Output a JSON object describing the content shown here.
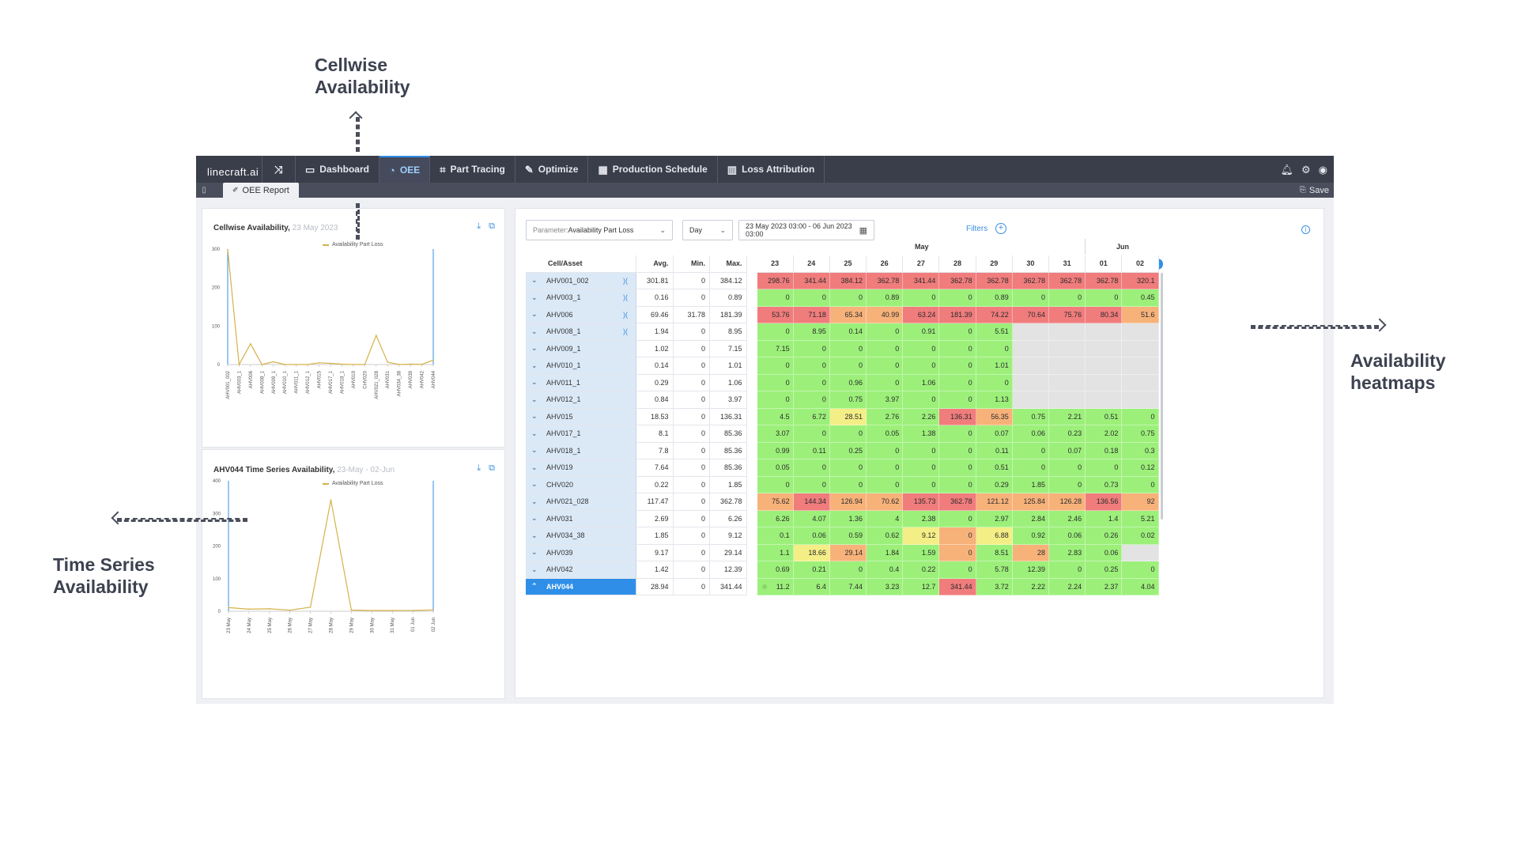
{
  "annotations": {
    "cellwise": [
      "Cellwise",
      "Availability"
    ],
    "timeseries": [
      "Time Series",
      "Availability"
    ],
    "heatmaps": [
      "Availability",
      "heatmaps"
    ]
  },
  "navbar": {
    "logo": "linecraft.ai",
    "items": [
      {
        "label": "Dashboard",
        "icon": "dashboard-icon"
      },
      {
        "label": "OEE",
        "icon": "oee-icon",
        "active": true
      },
      {
        "label": "Part Tracing",
        "icon": "part-tracing-icon"
      },
      {
        "label": "Optimize",
        "icon": "wrench-icon"
      },
      {
        "label": "Production Schedule",
        "icon": "calendar-icon"
      },
      {
        "label": "Loss Attribution",
        "icon": "loss-chart-icon"
      }
    ],
    "right_icons": [
      "bell-icon",
      "gear-icon",
      "user-icon"
    ]
  },
  "subbar": {
    "tab": "OEE Report",
    "save": "Save"
  },
  "cellwise_chart": {
    "title": "Cellwise Availability,",
    "date": "23 May 2023",
    "chart_data": {
      "type": "line",
      "categories": [
        "AHV001_002",
        "AHV003_1",
        "AHV006",
        "AHV008_1",
        "AHV009_1",
        "AHV010_1",
        "AHV011_1",
        "AHV012_1",
        "AHV015",
        "AHV017_1",
        "AHV018_1",
        "AHV019",
        "CHV020",
        "AHV021_028",
        "AHV031",
        "AHV034_38",
        "AHV039",
        "AHV042",
        "AHV044"
      ],
      "series": [
        {
          "name": "Availability Part Loss",
          "values": [
            298.76,
            0,
            53.76,
            0,
            7.15,
            0,
            0,
            0,
            4.5,
            3.07,
            0.99,
            0.05,
            0,
            75.62,
            6.26,
            0.1,
            1.1,
            0.69,
            11.2
          ]
        }
      ],
      "yticks": [
        "0",
        "100",
        "200",
        "300"
      ],
      "ylim": [
        0,
        300
      ],
      "color": "#d4b24a"
    }
  },
  "timeseries_chart": {
    "title": "AHV044 Time Series Availability,",
    "date": "23-May - 02-Jun",
    "chart_data": {
      "type": "line",
      "categories": [
        "23 May",
        "24 May",
        "25 May",
        "26 May",
        "27 May",
        "28 May",
        "29 May",
        "30 May",
        "31 May",
        "01 Jun",
        "02 Jun"
      ],
      "series": [
        {
          "name": "Availability Part Loss",
          "values": [
            11.2,
            6.4,
            7.44,
            3.23,
            12.7,
            341.44,
            3.72,
            2.22,
            2.24,
            2.37,
            4.04
          ]
        }
      ],
      "yticks": [
        "0",
        "100",
        "200",
        "300",
        "400"
      ],
      "ylim": [
        0,
        400
      ],
      "color": "#d4b24a"
    }
  },
  "heatmap_panel": {
    "parameter_label": "Parameter:",
    "parameter_value": "Availability Part Loss",
    "granularity": "Day",
    "date_range": "23 May 2023 03:00 - 06 Jun 2023 03:00",
    "filters": "Filters",
    "months": [
      "May",
      "Jun"
    ],
    "headers": {
      "asset": "Cell/Asset",
      "avg": "Avg.",
      "min": "Min.",
      "max": "Max."
    },
    "days": [
      "23",
      "24",
      "25",
      "26",
      "27",
      "28",
      "29",
      "30",
      "31",
      "01",
      "02"
    ],
    "rows": [
      {
        "name": "AHV001_002",
        "avg": "301.81",
        "min": "0",
        "max": "384.12",
        "link": true,
        "cells": [
          "298.76",
          "341.44",
          "384.12",
          "362.78",
          "341.44",
          "362.78",
          "362.78",
          "362.78",
          "362.78",
          "362.78",
          "320.1"
        ]
      },
      {
        "name": "AHV003_1",
        "avg": "0.16",
        "min": "0",
        "max": "0.89",
        "link": true,
        "cells": [
          "0",
          "0",
          "0",
          "0.89",
          "0",
          "0",
          "0.89",
          "0",
          "0",
          "0",
          "0.45"
        ]
      },
      {
        "name": "AHV006",
        "avg": "69.46",
        "min": "31.78",
        "max": "181.39",
        "link": true,
        "cells": [
          "53.76",
          "71.18",
          "65.34",
          "40.99",
          "63.24",
          "181.39",
          "74.22",
          "70.64",
          "75.76",
          "80.34",
          "51.6"
        ]
      },
      {
        "name": "AHV008_1",
        "avg": "1.94",
        "min": "0",
        "max": "8.95",
        "link": true,
        "cells": [
          "0",
          "8.95",
          "0.14",
          "0",
          "0.91",
          "0",
          "5.51",
          "",
          "",
          "",
          ""
        ]
      },
      {
        "name": "AHV009_1",
        "avg": "1.02",
        "min": "0",
        "max": "7.15",
        "cells": [
          "7.15",
          "0",
          "0",
          "0",
          "0",
          "0",
          "0",
          "",
          "",
          "",
          ""
        ]
      },
      {
        "name": "AHV010_1",
        "avg": "0.14",
        "min": "0",
        "max": "1.01",
        "cells": [
          "0",
          "0",
          "0",
          "0",
          "0",
          "0",
          "1.01",
          "",
          "",
          "",
          ""
        ]
      },
      {
        "name": "AHV011_1",
        "avg": "0.29",
        "min": "0",
        "max": "1.06",
        "cells": [
          "0",
          "0",
          "0.96",
          "0",
          "1.06",
          "0",
          "0",
          "",
          "",
          "",
          ""
        ]
      },
      {
        "name": "AHV012_1",
        "avg": "0.84",
        "min": "0",
        "max": "3.97",
        "cells": [
          "0",
          "0",
          "0.75",
          "3.97",
          "0",
          "0",
          "1.13",
          "",
          "",
          "",
          ""
        ]
      },
      {
        "name": "AHV015",
        "avg": "18.53",
        "min": "0",
        "max": "136.31",
        "cells": [
          "4.5",
          "6.72",
          "28.51",
          "2.76",
          "2.26",
          "136.31",
          "56.35",
          "0.75",
          "2.21",
          "0.51",
          "0"
        ]
      },
      {
        "name": "AHV017_1",
        "avg": "8.1",
        "min": "0",
        "max": "85.36",
        "cells": [
          "3.07",
          "0",
          "0",
          "0.05",
          "1.38",
          "0",
          "0.07",
          "0.06",
          "0.23",
          "2.02",
          "0.75"
        ]
      },
      {
        "name": "AHV018_1",
        "avg": "7.8",
        "min": "0",
        "max": "85.36",
        "cells": [
          "0.99",
          "0.11",
          "0.25",
          "0",
          "0",
          "0",
          "0.11",
          "0",
          "0.07",
          "0.18",
          "0.3"
        ]
      },
      {
        "name": "AHV019",
        "avg": "7.64",
        "min": "0",
        "max": "85.36",
        "cells": [
          "0.05",
          "0",
          "0",
          "0",
          "0",
          "0",
          "0.51",
          "0",
          "0",
          "0",
          "0.12"
        ]
      },
      {
        "name": "CHV020",
        "avg": "0.22",
        "min": "0",
        "max": "1.85",
        "cells": [
          "0",
          "0",
          "0",
          "0",
          "0",
          "0",
          "0.29",
          "1.85",
          "0",
          "0.73",
          "0"
        ]
      },
      {
        "name": "AHV021_028",
        "avg": "117.47",
        "min": "0",
        "max": "362.78",
        "cells": [
          "75.62",
          "144.34",
          "126.94",
          "70.62",
          "135.73",
          "362.78",
          "121.12",
          "125.84",
          "126.28",
          "136.56",
          "92"
        ]
      },
      {
        "name": "AHV031",
        "avg": "2.69",
        "min": "0",
        "max": "6.26",
        "cells": [
          "6.26",
          "4.07",
          "1.36",
          "4",
          "2.38",
          "0",
          "2.97",
          "2.84",
          "2.46",
          "1.4",
          "5.21"
        ]
      },
      {
        "name": "AHV034_38",
        "avg": "1.85",
        "min": "0",
        "max": "9.12",
        "cells": [
          "0.1",
          "0.06",
          "0.59",
          "0.62",
          "9.12",
          "0",
          "6.88",
          "0.92",
          "0.06",
          "0.26",
          "0.02"
        ]
      },
      {
        "name": "AHV039",
        "avg": "9.17",
        "min": "0",
        "max": "29.14",
        "cells": [
          "1.1",
          "18.66",
          "29.14",
          "1.84",
          "1.59",
          "0",
          "8.51",
          "28",
          "2.83",
          "0.06",
          ""
        ]
      },
      {
        "name": "AHV042",
        "avg": "1.42",
        "min": "0",
        "max": "12.39",
        "cells": [
          "0.69",
          "0.21",
          "0",
          "0.4",
          "0.22",
          "0",
          "5.78",
          "12.39",
          "0",
          "0.25",
          "0"
        ]
      },
      {
        "name": "AHV044",
        "avg": "28.94",
        "min": "0",
        "max": "341.44",
        "selected": true,
        "cells": [
          "11.2",
          "6.4",
          "7.44",
          "3.23",
          "12.7",
          "341.44",
          "3.72",
          "2.22",
          "2.24",
          "2.37",
          "4.04"
        ]
      }
    ],
    "cell_colors": [
      [
        "red",
        "red",
        "red",
        "red",
        "red",
        "red",
        "red",
        "red",
        "red",
        "red",
        "red"
      ],
      [
        "green",
        "green",
        "green",
        "green",
        "green",
        "green",
        "green",
        "green",
        "green",
        "green",
        "green"
      ],
      [
        "red",
        "red",
        "orange",
        "orange",
        "red",
        "red",
        "red",
        "red",
        "red",
        "red",
        "orange"
      ],
      [
        "green",
        "green",
        "green",
        "green",
        "green",
        "green",
        "green",
        "grey",
        "grey",
        "grey",
        "grey"
      ],
      [
        "green",
        "green",
        "green",
        "green",
        "green",
        "green",
        "green",
        "grey",
        "grey",
        "grey",
        "grey"
      ],
      [
        "green",
        "green",
        "green",
        "green",
        "green",
        "green",
        "green",
        "grey",
        "grey",
        "grey",
        "grey"
      ],
      [
        "green",
        "green",
        "green",
        "green",
        "green",
        "green",
        "green",
        "grey",
        "grey",
        "grey",
        "grey"
      ],
      [
        "green",
        "green",
        "green",
        "green",
        "green",
        "green",
        "green",
        "grey",
        "grey",
        "grey",
        "grey"
      ],
      [
        "green",
        "green",
        "yellow",
        "green",
        "green",
        "red",
        "orange",
        "green",
        "green",
        "green",
        "green"
      ],
      [
        "green",
        "green",
        "green",
        "green",
        "green",
        "green",
        "green",
        "green",
        "green",
        "green",
        "green"
      ],
      [
        "green",
        "green",
        "green",
        "green",
        "green",
        "green",
        "green",
        "green",
        "green",
        "green",
        "green"
      ],
      [
        "green",
        "green",
        "green",
        "green",
        "green",
        "green",
        "green",
        "green",
        "green",
        "green",
        "green"
      ],
      [
        "green",
        "green",
        "green",
        "green",
        "green",
        "green",
        "green",
        "green",
        "green",
        "green",
        "green"
      ],
      [
        "orange",
        "red",
        "orange",
        "orange",
        "red",
        "red",
        "orange",
        "orange",
        "orange",
        "red",
        "orange"
      ],
      [
        "green",
        "green",
        "green",
        "green",
        "green",
        "green",
        "green",
        "green",
        "green",
        "green",
        "green"
      ],
      [
        "green",
        "green",
        "green",
        "green",
        "yellow",
        "orange",
        "yellow",
        "green",
        "green",
        "green",
        "green"
      ],
      [
        "green",
        "yellow",
        "orange",
        "green",
        "green",
        "orange",
        "green",
        "orange",
        "green",
        "green",
        "grey"
      ],
      [
        "green",
        "green",
        "green",
        "green",
        "green",
        "green",
        "green",
        "green",
        "green",
        "green",
        "green"
      ],
      [
        "green",
        "green",
        "green",
        "green",
        "green",
        "red",
        "green",
        "green",
        "green",
        "green",
        "green"
      ]
    ],
    "palette": {
      "red": "#f07c7c",
      "orange": "#f7b27a",
      "yellow": "#f4ee86",
      "green": "#9cf07a",
      "grey": "#e3e3e3"
    }
  }
}
